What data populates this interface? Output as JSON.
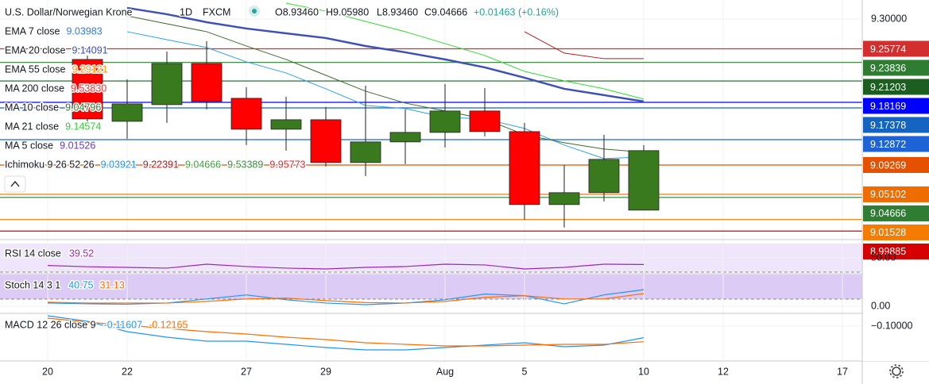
{
  "header": {
    "symbol": "U.S. Dollar/Norwegian Krone",
    "interval": "1D",
    "source": "FXCM",
    "ohlc": [
      "O8.93460",
      "H9.05980",
      "L8.93460",
      "C9.04666"
    ],
    "change": "+0.01463 (+0.16%)"
  },
  "chart_data": [
    {
      "type": "candlestick",
      "categories": [
        "20",
        null,
        "22",
        null,
        null,
        "27",
        null,
        "29",
        null,
        null,
        "Aug",
        null,
        "5",
        null,
        null,
        "10",
        null,
        "12",
        null,
        null,
        "17"
      ],
      "open": [
        null,
        9.2426,
        9.1547,
        9.1784,
        9.2369,
        9.1874,
        9.1435,
        9.157,
        9.0962,
        9.1255,
        9.139,
        9.1694,
        9.1401,
        9.0365,
        9.0534,
        9.0286,
        null,
        null,
        null,
        null,
        null
      ],
      "high": [
        null,
        9.2482,
        9.2144,
        9.2538,
        9.2685,
        9.2032,
        9.1897,
        9.175,
        9.2054,
        9.1716,
        9.2077,
        9.202,
        9.1525,
        9.0928,
        9.1356,
        9.121,
        null,
        null,
        null,
        null,
        null
      ],
      "low": [
        null,
        9.1525,
        9.13,
        9.1525,
        9.1716,
        9.121,
        9.1131,
        9.0906,
        9.077,
        9.0939,
        9.1176,
        9.1334,
        9.0151,
        9.0039,
        9.041,
        9.0286,
        null,
        null,
        null,
        null,
        null
      ],
      "close": [
        null,
        9.1581,
        9.1795,
        9.2369,
        9.1829,
        9.1435,
        9.157,
        9.0962,
        9.1255,
        9.139,
        9.1694,
        9.1401,
        9.0365,
        9.0534,
        9.1007,
        9.1131,
        null,
        null,
        null,
        null,
        null
      ],
      "up_color": "#3a7a1e",
      "down_color": "#ff0000",
      "ylim": [
        8.989,
        9.327
      ],
      "yticks": [
        {
          "value": 9.3,
          "label": "9.30000"
        }
      ],
      "overlays": [
        {
          "color": "#3f51b5",
          "width": 2.5,
          "values": [
            null,
            null,
            9.3158,
            9.3068,
            9.2955,
            9.2865,
            9.2797,
            9.273,
            9.2617,
            9.2527,
            9.2426,
            9.2313,
            9.2167,
            9.2009,
            9.1919,
            9.1829,
            null,
            null,
            null,
            null,
            null
          ]
        },
        {
          "color": "#33dd33",
          "width": 1,
          "values": [
            null,
            null,
            null,
            null,
            null,
            null,
            9.3225,
            9.3113,
            9.2966,
            9.282,
            9.2651,
            9.2482,
            9.2257,
            9.2122,
            9.2009,
            9.1863,
            null,
            null,
            null,
            null,
            null
          ]
        },
        {
          "color": "#b71c1c",
          "width": 1,
          "values": [
            null,
            null,
            null,
            null,
            null,
            null,
            null,
            null,
            null,
            null,
            null,
            null,
            9.282,
            9.2516,
            9.2437,
            9.2437,
            null,
            null,
            null,
            null,
            null
          ]
        },
        {
          "color": "#29a3f6",
          "width": 1,
          "values": [
            null,
            null,
            9.282,
            9.2707,
            9.2595,
            9.2392,
            9.2234,
            9.2009,
            9.1773,
            9.1728,
            9.1604,
            9.1581,
            9.1446,
            9.121,
            9.1018,
            9.1041,
            null,
            null,
            null,
            null,
            null
          ]
        },
        {
          "color": "#3e6b2e",
          "width": 1,
          "values": [
            null,
            null,
            9.3045,
            9.2932,
            9.282,
            9.2617,
            9.2426,
            9.2201,
            9.1975,
            9.1806,
            9.1694,
            9.1581,
            9.1356,
            9.1243,
            9.1153,
            9.1108,
            null,
            null,
            null,
            null,
            null
          ]
        }
      ],
      "price_lines": [
        {
          "value": 9.25774,
          "color": "#d32f2f"
        },
        {
          "value": 9.23836,
          "color": "#2e7d32"
        },
        {
          "value": 9.21203,
          "color": "#1b5e20"
        },
        {
          "value": 9.18169,
          "color": "#0000ff"
        },
        {
          "value": 9.17378,
          "color": "#1565c0"
        },
        {
          "value": 9.12872,
          "color": "#1e63d6"
        },
        {
          "value": 9.09269,
          "color": "#e65100"
        },
        {
          "value": 9.05102,
          "color": "#ef6c00"
        },
        {
          "value": 9.04666,
          "color": "#2e7d32"
        },
        {
          "value": 9.01528,
          "color": "#f57c00"
        },
        {
          "value": 8.99885,
          "color": "#d50000"
        }
      ],
      "legend": [
        {
          "name": "EMA 7 close",
          "values": [
            {
              "text": "9.03983",
              "color": "#2f7de1"
            }
          ]
        },
        {
          "name": "EMA 20 close",
          "values": [
            {
              "text": "9.14091",
              "color": "#3f51b5"
            }
          ]
        },
        {
          "name": "EMA 55 close",
          "values": [
            {
              "text": "9.29121",
              "color": "#ff9800"
            }
          ]
        },
        {
          "name": "MA 200 close",
          "values": [
            {
              "text": "9.53830",
              "color": "#e53935"
            }
          ]
        },
        {
          "name": "MA 10 close",
          "values": [
            {
              "text": "9.04796",
              "color": "#2e7d32"
            }
          ]
        },
        {
          "name": "MA 21 close",
          "values": [
            {
              "text": "9.14574",
              "color": "#33cc33"
            }
          ]
        },
        {
          "name": "MA 5 close",
          "values": [
            {
              "text": "9.01526",
              "color": "#673ab7"
            }
          ]
        },
        {
          "name": "Ichimoku 9 26 52 26",
          "values": [
            {
              "text": "9.03921",
              "color": "#2196f3"
            },
            {
              "text": "9.22391",
              "color": "#b71c1c"
            },
            {
              "text": "9.04666",
              "color": "#43a047"
            },
            {
              "text": "9.53389",
              "color": "#388e3c"
            },
            {
              "text": "9.95773",
              "color": "#d32f2f"
            }
          ]
        }
      ]
    },
    {
      "type": "line",
      "title": "RSI 14 close",
      "ylim": [
        25,
        75
      ],
      "yticks": [
        {
          "value": 50,
          "label": "50.00"
        }
      ],
      "series": [
        {
          "color": "#9c27b0",
          "values": [
            38,
            36,
            35,
            33.8,
            40,
            36.3,
            33.8,
            32.5,
            35,
            36.3,
            40,
            38.8,
            32.5,
            35,
            40,
            39.52
          ]
        }
      ]
    },
    {
      "type": "line",
      "title": "Stoch 14 3 1",
      "ylim": [
        -17.5,
        80
      ],
      "yticks": [
        {
          "value": 0,
          "label": "0.00"
        }
      ],
      "series": [
        {
          "color": "#2196f3",
          "values": [
            8,
            6,
            5,
            8,
            18,
            28,
            16,
            8,
            4,
            8,
            16,
            30,
            26,
            6,
            28,
            40.75
          ]
        },
        {
          "color": "#ff6d00",
          "values": [
            10,
            8,
            8,
            8,
            12,
            18,
            20,
            14,
            9,
            8,
            12,
            22,
            26,
            18,
            18,
            31.13
          ]
        }
      ]
    },
    {
      "type": "line",
      "title": "MACD 12 26 close 9",
      "ylim": [
        -0.1484,
        -0.0824
      ],
      "yticks": [
        {
          "value": -0.1,
          "label": "−0.10000"
        }
      ],
      "series": [
        {
          "color": "#2196f3",
          "values": [
            -0.0857,
            -0.0934,
            -0.1077,
            -0.1154,
            -0.1209,
            -0.1209,
            -0.1253,
            -0.1297,
            -0.133,
            -0.133,
            -0.1297,
            -0.1264,
            -0.1231,
            -0.1286,
            -0.1264,
            -0.11607
          ]
        },
        {
          "color": "#ff6d00",
          "values": [
            -0.089,
            -0.0945,
            -0.0989,
            -0.1033,
            -0.1077,
            -0.111,
            -0.1154,
            -0.1187,
            -0.1231,
            -0.1253,
            -0.1275,
            -0.1275,
            -0.1264,
            -0.1253,
            -0.1253,
            -0.12165
          ]
        }
      ]
    }
  ]
}
